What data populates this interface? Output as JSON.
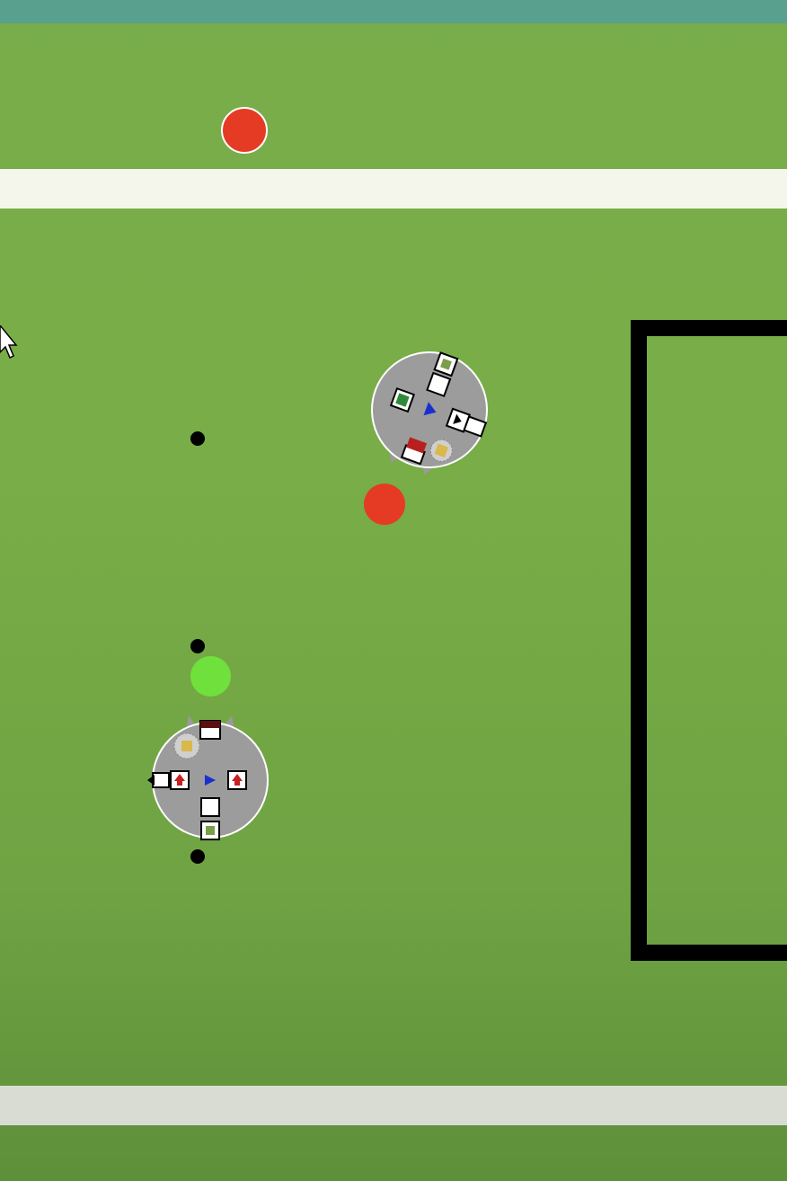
{
  "scene": {
    "name": "robot-soccer-simulation",
    "colors": {
      "field": "#78ad4b",
      "field_line": "#f4f6ec",
      "top_bar": "#5aa08e",
      "goal_frame": "#000000",
      "ball_red": "#e53b25",
      "ball_green": "#6fe03c",
      "robot_body": "#9a9a9a",
      "robot_outline": "#ffffff"
    }
  },
  "objects": {
    "balls": [
      {
        "id": "red-ball-top",
        "color": "red"
      },
      {
        "id": "red-ball-mid",
        "color": "red"
      },
      {
        "id": "green-ball",
        "color": "green"
      }
    ],
    "markers": [
      "marker-1",
      "marker-2",
      "marker-3"
    ],
    "robots": [
      {
        "id": "robot-upper",
        "heading": "down-left",
        "icons": [
          "arrow-icon",
          "blank-tile",
          "gear-tile",
          "dice-tile",
          "gripper"
        ]
      },
      {
        "id": "robot-lower",
        "heading": "up",
        "icons": [
          "arrow-icon",
          "blank-tile",
          "gear-tile",
          "dice-tile",
          "gripper"
        ]
      }
    ]
  }
}
